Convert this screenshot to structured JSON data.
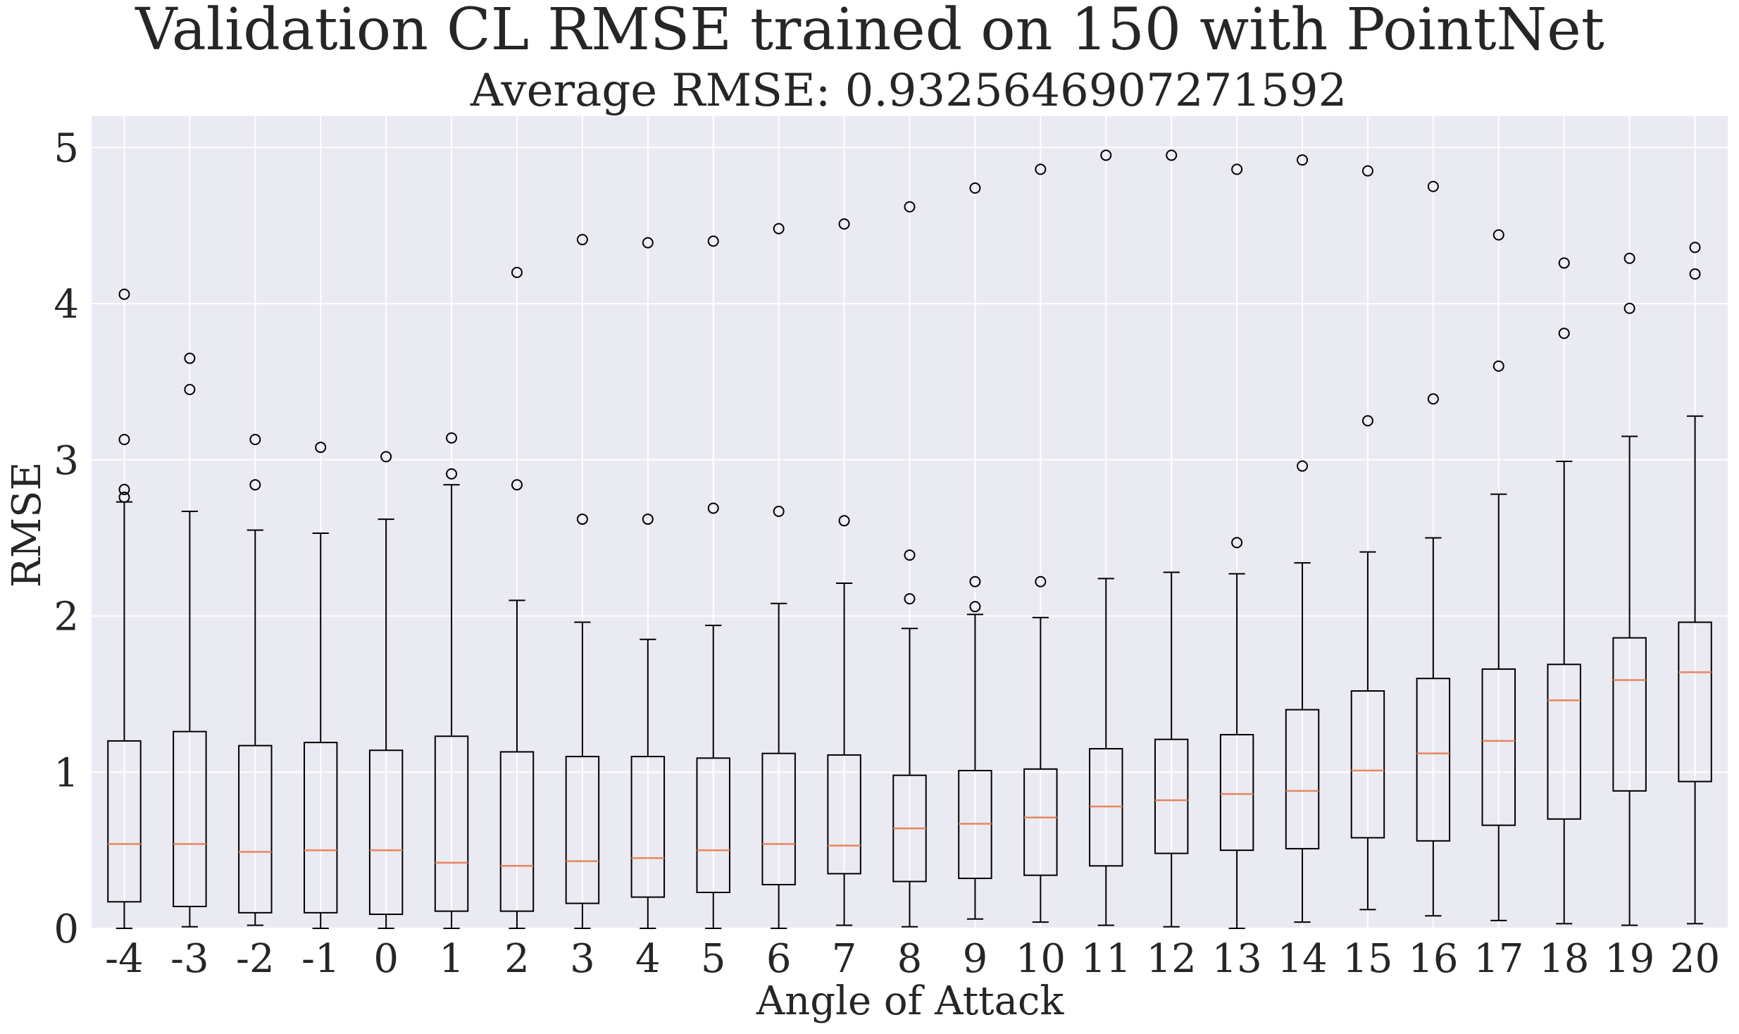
{
  "chart_data": {
    "type": "box",
    "title": "Validation CL RMSE trained on 150 with PointNet",
    "subtitle": "Average RMSE:  0.9325646907271592",
    "xlabel": "Angle of Attack",
    "ylabel": "RMSE",
    "ylim": [
      0,
      5.2
    ],
    "yticks": [
      0,
      1,
      2,
      3,
      4,
      5
    ],
    "grid": true,
    "colors": {
      "background": "#eaeaf2",
      "grid": "#ffffff",
      "box": "#000000",
      "median": "#e8855e",
      "text": "#262626"
    },
    "categories": [
      "-4",
      "-3",
      "-2",
      "-1",
      "0",
      "1",
      "2",
      "3",
      "4",
      "5",
      "6",
      "7",
      "8",
      "9",
      "10",
      "11",
      "12",
      "13",
      "14",
      "15",
      "16",
      "17",
      "18",
      "19",
      "20"
    ],
    "boxes": [
      {
        "x": "-4",
        "whislo": 0.0,
        "q1": 0.17,
        "med": 0.54,
        "q3": 1.2,
        "whishi": 2.73,
        "fliers": [
          2.76,
          2.81,
          3.13,
          4.06
        ]
      },
      {
        "x": "-3",
        "whislo": 0.01,
        "q1": 0.14,
        "med": 0.54,
        "q3": 1.26,
        "whishi": 2.67,
        "fliers": [
          3.45,
          3.65
        ]
      },
      {
        "x": "-2",
        "whislo": 0.02,
        "q1": 0.1,
        "med": 0.49,
        "q3": 1.17,
        "whishi": 2.55,
        "fliers": [
          2.84,
          3.13
        ]
      },
      {
        "x": "-1",
        "whislo": 0.0,
        "q1": 0.1,
        "med": 0.5,
        "q3": 1.19,
        "whishi": 2.53,
        "fliers": [
          3.08
        ]
      },
      {
        "x": "0",
        "whislo": 0.0,
        "q1": 0.09,
        "med": 0.5,
        "q3": 1.14,
        "whishi": 2.62,
        "fliers": [
          3.02
        ]
      },
      {
        "x": "1",
        "whislo": 0.0,
        "q1": 0.11,
        "med": 0.42,
        "q3": 1.23,
        "whishi": 2.84,
        "fliers": [
          2.91,
          3.14
        ]
      },
      {
        "x": "2",
        "whislo": 0.0,
        "q1": 0.11,
        "med": 0.4,
        "q3": 1.13,
        "whishi": 2.1,
        "fliers": [
          2.84,
          4.2
        ]
      },
      {
        "x": "3",
        "whislo": 0.0,
        "q1": 0.16,
        "med": 0.43,
        "q3": 1.1,
        "whishi": 1.96,
        "fliers": [
          2.62,
          4.41
        ]
      },
      {
        "x": "4",
        "whislo": 0.0,
        "q1": 0.2,
        "med": 0.45,
        "q3": 1.1,
        "whishi": 1.85,
        "fliers": [
          2.62,
          4.39
        ]
      },
      {
        "x": "5",
        "whislo": 0.0,
        "q1": 0.23,
        "med": 0.5,
        "q3": 1.09,
        "whishi": 1.94,
        "fliers": [
          2.69,
          4.4
        ]
      },
      {
        "x": "6",
        "whislo": 0.0,
        "q1": 0.28,
        "med": 0.54,
        "q3": 1.12,
        "whishi": 2.08,
        "fliers": [
          2.67,
          4.48
        ]
      },
      {
        "x": "7",
        "whislo": 0.02,
        "q1": 0.35,
        "med": 0.53,
        "q3": 1.11,
        "whishi": 2.21,
        "fliers": [
          2.61,
          4.51
        ]
      },
      {
        "x": "8",
        "whislo": 0.01,
        "q1": 0.3,
        "med": 0.64,
        "q3": 0.98,
        "whishi": 1.92,
        "fliers": [
          2.11,
          2.39,
          4.62
        ]
      },
      {
        "x": "9",
        "whislo": 0.06,
        "q1": 0.32,
        "med": 0.67,
        "q3": 1.01,
        "whishi": 2.01,
        "fliers": [
          2.06,
          2.22,
          4.74
        ]
      },
      {
        "x": "10",
        "whislo": 0.04,
        "q1": 0.34,
        "med": 0.71,
        "q3": 1.02,
        "whishi": 1.99,
        "fliers": [
          2.22,
          4.86
        ]
      },
      {
        "x": "11",
        "whislo": 0.02,
        "q1": 0.4,
        "med": 0.78,
        "q3": 1.15,
        "whishi": 2.24,
        "fliers": [
          4.95
        ]
      },
      {
        "x": "12",
        "whislo": 0.01,
        "q1": 0.48,
        "med": 0.82,
        "q3": 1.21,
        "whishi": 2.28,
        "fliers": [
          4.95
        ]
      },
      {
        "x": "13",
        "whislo": 0.0,
        "q1": 0.5,
        "med": 0.86,
        "q3": 1.24,
        "whishi": 2.27,
        "fliers": [
          2.47,
          4.86
        ]
      },
      {
        "x": "14",
        "whislo": 0.04,
        "q1": 0.51,
        "med": 0.88,
        "q3": 1.4,
        "whishi": 2.34,
        "fliers": [
          2.96,
          4.92
        ]
      },
      {
        "x": "15",
        "whislo": 0.12,
        "q1": 0.58,
        "med": 1.01,
        "q3": 1.52,
        "whishi": 2.41,
        "fliers": [
          3.25,
          4.85
        ]
      },
      {
        "x": "16",
        "whislo": 0.08,
        "q1": 0.56,
        "med": 1.12,
        "q3": 1.6,
        "whishi": 2.5,
        "fliers": [
          3.39,
          4.75
        ]
      },
      {
        "x": "17",
        "whislo": 0.05,
        "q1": 0.66,
        "med": 1.2,
        "q3": 1.66,
        "whishi": 2.78,
        "fliers": [
          3.6,
          4.44
        ]
      },
      {
        "x": "18",
        "whislo": 0.03,
        "q1": 0.7,
        "med": 1.46,
        "q3": 1.69,
        "whishi": 2.99,
        "fliers": [
          3.81,
          4.26
        ]
      },
      {
        "x": "19",
        "whislo": 0.02,
        "q1": 0.88,
        "med": 1.59,
        "q3": 1.86,
        "whishi": 3.15,
        "fliers": [
          3.97,
          4.29
        ]
      },
      {
        "x": "20",
        "whislo": 0.03,
        "q1": 0.94,
        "med": 1.64,
        "q3": 1.96,
        "whishi": 3.28,
        "fliers": [
          4.19,
          4.36
        ]
      }
    ]
  }
}
